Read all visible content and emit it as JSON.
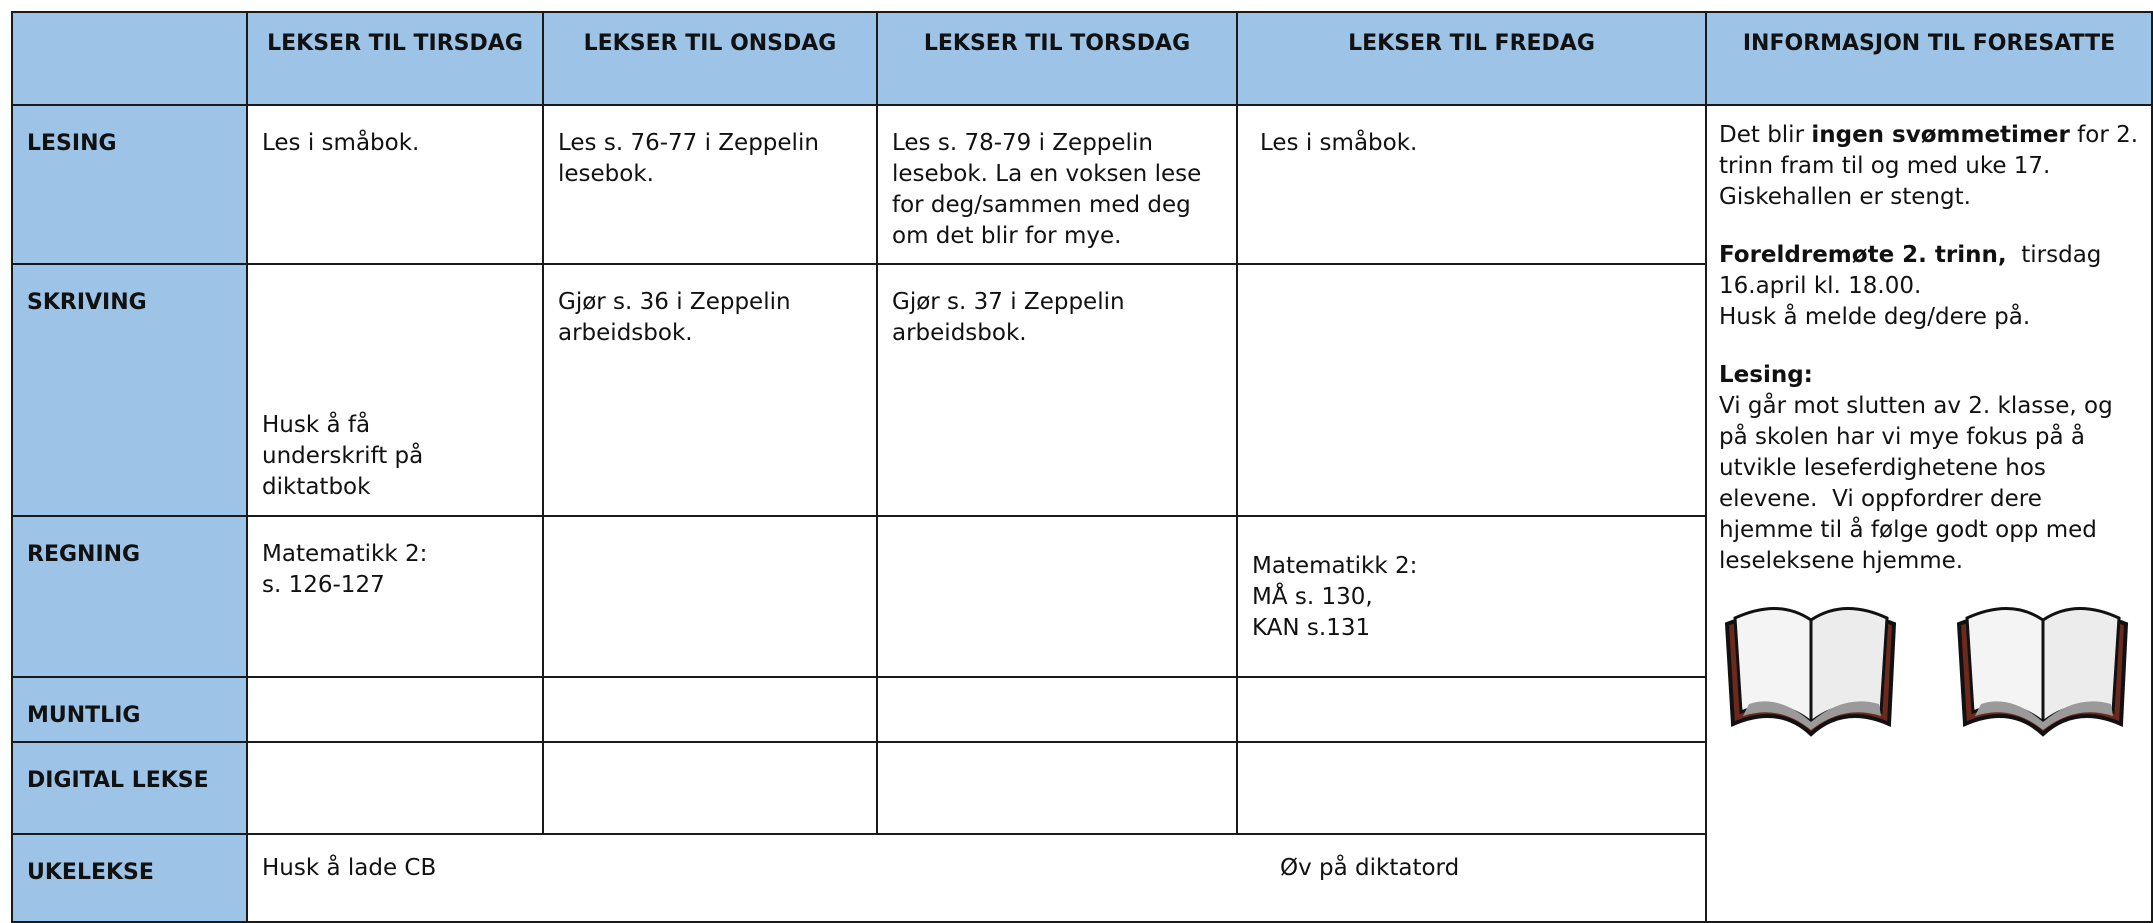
{
  "header": {
    "columns": [
      "LEKSER TIL TIRSDAG",
      "LEKSER TIL ONSDAG",
      "LEKSER TIL TORSDAG",
      "LEKSER TIL FREDAG",
      "INFORMASJON TIL FORESATTE"
    ]
  },
  "rows": [
    {
      "label": "LESING",
      "cells": [
        "Les i småbok.",
        "Les s. 76-77 i Zeppelin lesebok.",
        "Les s. 78-79 i Zeppelin lesebok. La en voksen lese for deg/sammen med deg om det blir for mye.",
        "Les i småbok."
      ]
    },
    {
      "label": "SKRIVING",
      "cells": [
        "Husk å få\nunderskrift på\ndiktatbok",
        "Gjør s. 36 i Zeppelin arbeidsbok.",
        "Gjør s. 37 i Zeppelin arbeidsbok.",
        null
      ]
    },
    {
      "label": "REGNING",
      "cells": [
        "Matematikk 2:\ns. 126-127",
        null,
        null,
        "Matematikk 2:\nMÅ s. 130,\nKAN s.131"
      ]
    },
    {
      "label": "MUNTLIG",
      "cells": [
        null,
        null,
        null,
        null
      ]
    },
    {
      "label": "DIGITAL LEKSE",
      "cells": [
        null,
        null,
        null,
        null
      ]
    }
  ],
  "week": {
    "label": "UKELEKSE",
    "items": [
      "Husk å lade CB",
      "Øv på diktatord"
    ]
  },
  "info": {
    "blocks": [
      {
        "lines": [
          [
            {
              "text": "Det blir ",
              "bold": false
            },
            {
              "text": "ingen svømmetimer",
              "bold": true
            },
            {
              "text": " for 2. trinn fram til og med uke 17. Giskehallen er stengt.",
              "bold": false
            }
          ]
        ]
      },
      {
        "lines": [
          [
            {
              "text": "Foreldremøte 2. trinn,",
              "bold": true
            },
            {
              "text": "  tirsdag 16.april kl. 18.00.",
              "bold": false
            }
          ],
          [
            {
              "text": "Husk å melde deg/dere på.",
              "bold": false
            }
          ]
        ]
      },
      {
        "lines": [
          [
            {
              "text": "Lesing:",
              "bold": true
            }
          ],
          [
            {
              "text": "Vi går mot slutten av 2. klasse, og på skolen har vi mye fokus på å utvikle leseferdighetene hos elevene.  Vi oppfordrer dere hjemme til å følge godt opp med leseleksene hjemme.",
              "bold": false
            }
          ]
        ]
      }
    ]
  }
}
